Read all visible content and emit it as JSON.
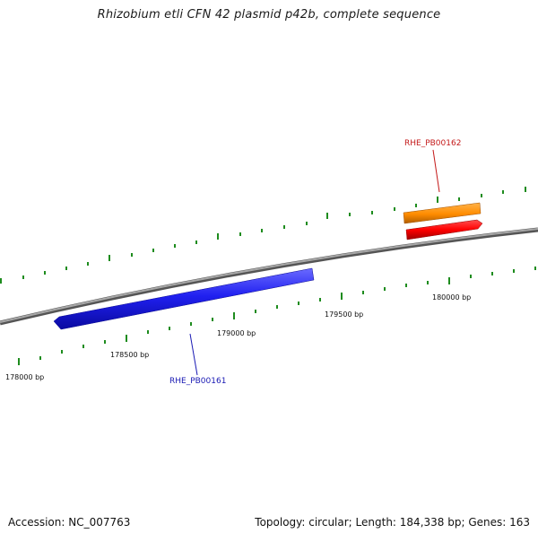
{
  "title": "Rhizobium etli CFN 42 plasmid p42b, complete sequence",
  "footer": {
    "accession": "Accession: NC_007763",
    "summary": "Topology: circular; Length: 184,338 bp; Genes: 163"
  },
  "scale": {
    "tick_labels": [
      "178000 bp",
      "178500 bp",
      "179000 bp",
      "179500 bp",
      "180000 bp"
    ]
  },
  "features": [
    {
      "label": "RHE_PB00161",
      "strand": "reverse",
      "color": "#1a1aee",
      "label_color": "#1a1ab4"
    },
    {
      "label": "RHE_PB00162",
      "strand": "forward",
      "color": "#ff8c00",
      "label_color": "#c41a1a"
    },
    {
      "label": "",
      "strand": "forward",
      "color": "#ff0000",
      "label_color": ""
    }
  ],
  "colors": {
    "backbone": "#8c8c8c",
    "ticks": "#1e8c1e"
  }
}
